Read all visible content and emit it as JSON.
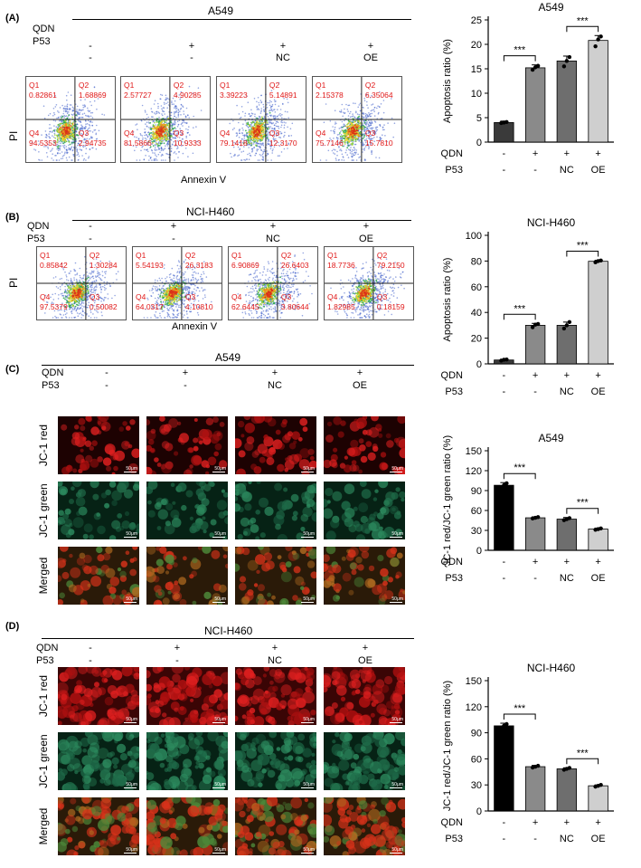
{
  "figure": {
    "panels": {
      "A": {
        "label": "(A)",
        "cell_line": "A549"
      },
      "B": {
        "label": "(B)",
        "cell_line": "NCI-H460"
      },
      "C": {
        "label": "(C)",
        "cell_line": "A549"
      },
      "D": {
        "label": "(D)",
        "cell_line": "NCI-H460"
      }
    },
    "row_labels": {
      "qdn": "QDN",
      "p53": "P53"
    },
    "conditions": {
      "qdn": [
        "-",
        "+",
        "+",
        "+"
      ],
      "p53": [
        "-",
        "-",
        "NC",
        "OE"
      ]
    },
    "flow_axis": {
      "y": "PI",
      "x": "Annexin V"
    },
    "quadrant_names": [
      "Q1",
      "Q2",
      "Q3",
      "Q4"
    ],
    "flow_A": [
      {
        "q1": "0.82861",
        "q2": "1.68869",
        "q3": "2.94735",
        "q4": "94.5353"
      },
      {
        "q1": "2.57727",
        "q2": "4.90285",
        "q3": "10.9333",
        "q4": "81.5866"
      },
      {
        "q1": "3.39223",
        "q2": "5.14891",
        "q3": "12.3170",
        "q4": "79.1418"
      },
      {
        "q1": "2.15378",
        "q2": "6.35064",
        "q3": "15.7810",
        "q4": "75.7146"
      }
    ],
    "flow_B": [
      {
        "q1": "0.85842",
        "q2": "1.30284",
        "q3": "0.50082",
        "q4": "97.5379"
      },
      {
        "q1": "5.54193",
        "q2": "26.3183",
        "q3": "4.10810",
        "q4": "64.0317"
      },
      {
        "q1": "6.90869",
        "q2": "26.6403",
        "q3": "3.80644",
        "q4": "62.6445"
      },
      {
        "q1": "18.7736",
        "q2": "79.2150",
        "q3": "0.18159",
        "q4": "1.82985"
      }
    ],
    "micro_rows": [
      "JC-1 red",
      "JC-1 green",
      "Merged"
    ],
    "scale_label": "50μm",
    "colors": {
      "quadrant_text": "#e01818",
      "red_channel": "#d01818",
      "green_channel": "#1f6a4a"
    }
  },
  "chart_data": [
    {
      "type": "bar",
      "title": "A549",
      "ylabel": "Apoptosis ratio (%)",
      "ylim": [
        0,
        25
      ],
      "yticks": [
        0,
        5,
        10,
        15,
        20,
        25
      ],
      "values": [
        4.0,
        15.2,
        16.6,
        20.8
      ],
      "errors": [
        0.3,
        0.6,
        1.0,
        1.0
      ],
      "points": [
        [
          3.9,
          4.0,
          4.1
        ],
        [
          14.8,
          15.3,
          15.6
        ],
        [
          15.5,
          16.6,
          17.4
        ],
        [
          19.6,
          21.0,
          21.6
        ]
      ],
      "colors": [
        "#3a3a3a",
        "#8a8a8a",
        "#6e6e6e",
        "#cfcfcf"
      ],
      "x_rows": {
        "qdn": [
          "-",
          "+",
          "+",
          "+"
        ],
        "p53": [
          "-",
          "-",
          "NC",
          "OE"
        ]
      },
      "significance": [
        {
          "from": 0,
          "to": 1,
          "label": "***"
        },
        {
          "from": 2,
          "to": 3,
          "label": "***"
        }
      ]
    },
    {
      "type": "bar",
      "title": "NCI-H460",
      "ylabel": "Apoptosis ratio (%)",
      "ylim": [
        0,
        100
      ],
      "yticks": [
        0,
        20,
        40,
        60,
        80,
        100
      ],
      "values": [
        3.0,
        30.0,
        30.0,
        79.8
      ],
      "errors": [
        0.6,
        1.5,
        2.5,
        0.8
      ],
      "points": [
        [
          2.5,
          3.2,
          3.4
        ],
        [
          28.5,
          30.5,
          31.0
        ],
        [
          27.5,
          30.0,
          32.5
        ],
        [
          79.0,
          80.0,
          80.4
        ]
      ],
      "colors": [
        "#3a3a3a",
        "#8a8a8a",
        "#6e6e6e",
        "#cfcfcf"
      ],
      "x_rows": {
        "qdn": [
          "-",
          "+",
          "+",
          "+"
        ],
        "p53": [
          "-",
          "-",
          "NC",
          "OE"
        ]
      },
      "significance": [
        {
          "from": 0,
          "to": 1,
          "label": "***"
        },
        {
          "from": 2,
          "to": 3,
          "label": "***"
        }
      ]
    },
    {
      "type": "bar",
      "title": "A549",
      "ylabel": "JC-1 red/JC-1 green ratio (%)",
      "ylim": [
        0,
        150
      ],
      "yticks": [
        0,
        30,
        60,
        90,
        120,
        150
      ],
      "values": [
        98.0,
        49.0,
        47.0,
        32.0
      ],
      "errors": [
        4.0,
        1.5,
        2.5,
        1.5
      ],
      "points": [
        [
          95.0,
          98.0,
          101.0
        ],
        [
          48.0,
          49.0,
          50.0
        ],
        [
          45.5,
          47.0,
          48.5
        ],
        [
          31.0,
          32.0,
          33.0
        ]
      ],
      "colors": [
        "#000000",
        "#8a8a8a",
        "#6e6e6e",
        "#cfcfcf"
      ],
      "x_rows": {
        "qdn": [
          "-",
          "+",
          "+",
          "+"
        ],
        "p53": [
          "-",
          "-",
          "NC",
          "OE"
        ]
      },
      "significance": [
        {
          "from": 0,
          "to": 1,
          "label": "***"
        },
        {
          "from": 2,
          "to": 3,
          "label": "***"
        }
      ]
    },
    {
      "type": "bar",
      "title": "NCI-H460",
      "ylabel": "JC-1 red/JC-1 green ratio (%)",
      "ylim": [
        0,
        150
      ],
      "yticks": [
        0,
        30,
        60,
        90,
        120,
        150
      ],
      "values": [
        98.0,
        51.0,
        48.5,
        29.0
      ],
      "errors": [
        3.0,
        1.5,
        1.2,
        1.0
      ],
      "points": [
        [
          96.0,
          98.0,
          100.0
        ],
        [
          50.0,
          51.0,
          52.0
        ],
        [
          47.5,
          48.5,
          49.5
        ],
        [
          28.0,
          29.0,
          30.0
        ]
      ],
      "colors": [
        "#000000",
        "#8a8a8a",
        "#6e6e6e",
        "#cfcfcf"
      ],
      "x_rows": {
        "qdn": [
          "-",
          "+",
          "+",
          "+"
        ],
        "p53": [
          "-",
          "-",
          "NC",
          "OE"
        ]
      },
      "significance": [
        {
          "from": 0,
          "to": 1,
          "label": "***"
        },
        {
          "from": 2,
          "to": 3,
          "label": "***"
        }
      ]
    }
  ]
}
